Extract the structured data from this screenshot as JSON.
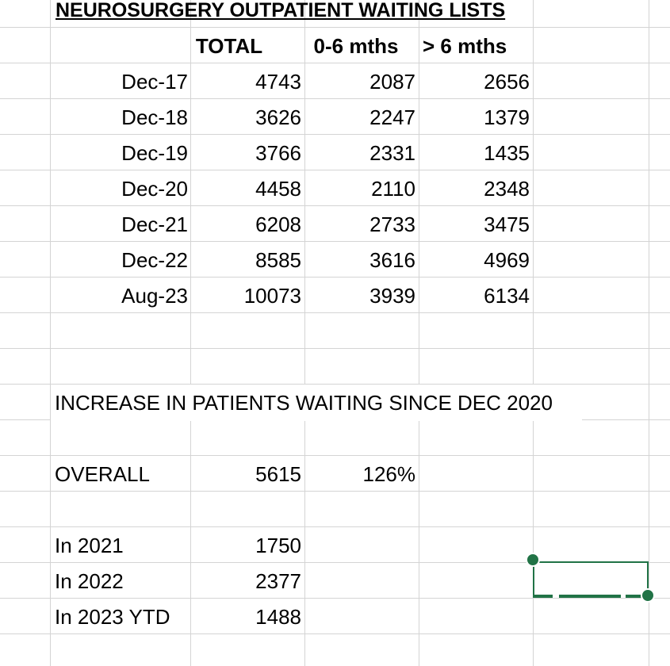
{
  "sheet": {
    "title": "NEUROSURGERY OUTPATIENT WAITING LISTS",
    "headers": [
      "TOTAL",
      "0-6 mths",
      "> 6 mths"
    ],
    "rows": [
      {
        "period": "Dec-17",
        "total": "4743",
        "short": "2087",
        "long": "2656"
      },
      {
        "period": "Dec-18",
        "total": "3626",
        "short": "2247",
        "long": "1379"
      },
      {
        "period": "Dec-19",
        "total": "3766",
        "short": "2331",
        "long": "1435"
      },
      {
        "period": "Dec-20",
        "total": "4458",
        "short": "2110",
        "long": "2348"
      },
      {
        "period": "Dec-21",
        "total": "6208",
        "short": "2733",
        "long": "3475"
      },
      {
        "period": "Dec-22",
        "total": "8585",
        "short": "3616",
        "long": "4969"
      },
      {
        "period": "Aug-23",
        "total": "10073",
        "short": "3939",
        "long": "6134"
      }
    ],
    "increase_heading": "INCREASE IN PATIENTS WAITING SINCE DEC 2020",
    "overall": {
      "label": "OVERALL",
      "value": "5615",
      "percent": "126%"
    },
    "by_year": [
      {
        "label": "In 2021",
        "value": "1750"
      },
      {
        "label": "In 2022",
        "value": "2377"
      },
      {
        "label": "In 2023 YTD",
        "value": "1488"
      }
    ]
  },
  "colors": {
    "gridline": "#d4d4d4",
    "selection": "#217346"
  }
}
